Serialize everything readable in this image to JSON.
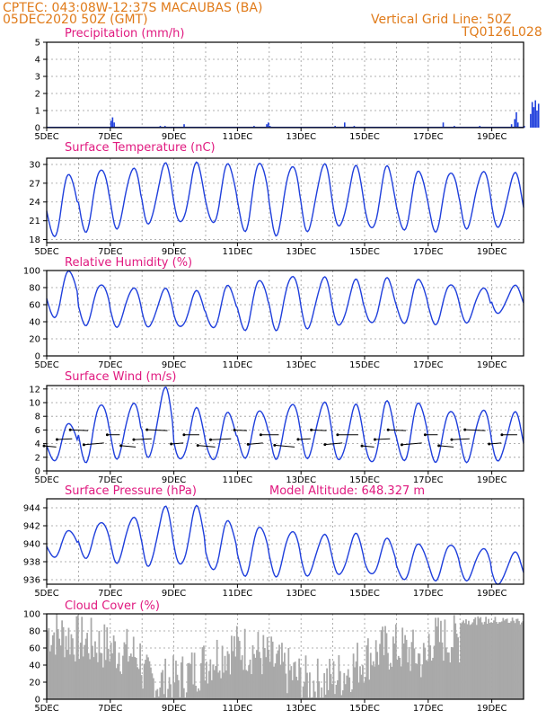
{
  "header": {
    "line1": "CPTEC:   043:08W-12:37S   MACAUBAS (BA)",
    "line2": "05DEC2020 50Z (GMT)",
    "right1": "Vertical Grid Line: 50Z",
    "right2": "TQ0126L028"
  },
  "x_ticks": [
    "5DEC",
    "7DEC",
    "9DEC",
    "11DEC",
    "13DEC",
    "15DEC",
    "17DEC",
    "19DEC"
  ],
  "colors": {
    "line": "#1f3fdc",
    "bar": "#1f3fdc",
    "cloud": "#a9a9a9",
    "header": "#e07b1a",
    "title": "#e0197f"
  },
  "chart_data": [
    {
      "type": "bar",
      "title": "Precipitation (mm/h)",
      "ylim": [
        0,
        5
      ],
      "yticks": [
        0,
        1,
        2,
        3,
        4,
        5
      ],
      "x_days": [
        0,
        15
      ],
      "bars": [
        [
          7.0,
          0.4
        ],
        [
          7.05,
          0.6
        ],
        [
          7.1,
          0.3
        ],
        [
          8.55,
          0.1
        ],
        [
          8.7,
          0.1
        ],
        [
          9.3,
          0.2
        ],
        [
          9.7,
          0.05
        ],
        [
          10.6,
          0.05
        ],
        [
          11.5,
          0.1
        ],
        [
          11.9,
          0.2
        ],
        [
          11.95,
          0.3
        ],
        [
          12.0,
          0.1
        ],
        [
          12.7,
          0.05
        ],
        [
          14.05,
          0.1
        ],
        [
          14.35,
          0.3
        ],
        [
          14.65,
          0.1
        ],
        [
          17.1,
          0.05
        ],
        [
          17.45,
          0.3
        ],
        [
          17.8,
          0.1
        ],
        [
          18.6,
          0.1
        ],
        [
          19.6,
          0.2
        ],
        [
          19.7,
          0.5
        ],
        [
          19.75,
          0.9
        ],
        [
          19.8,
          0.3
        ],
        [
          20.0,
          0.1
        ],
        [
          20.2,
          0.8
        ],
        [
          20.25,
          1.5
        ],
        [
          20.3,
          1.2
        ],
        [
          20.35,
          1.6
        ],
        [
          20.4,
          1.0
        ],
        [
          20.45,
          1.4
        ]
      ]
    },
    {
      "type": "line",
      "title": "Surface Temperature (nC)",
      "ylim": [
        17.5,
        31
      ],
      "yticks": [
        18,
        21,
        24,
        27,
        30
      ],
      "min": [
        18.5,
        19.5,
        20,
        20.5,
        20.5,
        20.5,
        19.5,
        19,
        19.5,
        20,
        19.5,
        19.5,
        19.5,
        20,
        20
      ],
      "max": [
        28.5,
        29.5,
        29.5,
        30,
        30,
        30,
        30.5,
        30,
        30,
        29.5,
        29.5,
        29,
        29,
        29,
        28.5
      ]
    },
    {
      "type": "line",
      "title": "Relative Humidity (%)",
      "ylim": [
        0,
        100
      ],
      "yticks": [
        0,
        20,
        40,
        60,
        80,
        100
      ],
      "min": [
        45,
        37,
        35,
        34,
        33,
        32,
        31,
        32,
        33,
        35,
        37,
        38,
        38,
        40,
        50
      ],
      "max": [
        100,
        85,
        80,
        78,
        75,
        82,
        90,
        95,
        92,
        88,
        90,
        90,
        85,
        80,
        82
      ]
    },
    {
      "type": "line",
      "title": "Surface Wind (m/s)",
      "ylim": [
        0,
        12.5
      ],
      "yticks": [
        0,
        2,
        4,
        6,
        8,
        10,
        12
      ],
      "min": [
        1.5,
        1.5,
        2,
        2,
        1.5,
        1.5,
        2,
        2,
        2,
        1.5,
        1,
        1.5,
        1.5,
        1.5,
        1.5
      ],
      "max": [
        7,
        10,
        10,
        12,
        9,
        8.5,
        9,
        10,
        10,
        9.5,
        10,
        10,
        9,
        9,
        8.5
      ]
    },
    {
      "type": "line",
      "title": "Surface Pressure (hPa)",
      "annotation": "Model Altitude: 648.327 m",
      "ylim": [
        935.5,
        945
      ],
      "yticks": [
        936,
        938,
        940,
        942,
        944
      ],
      "min": [
        938.5,
        938.5,
        938,
        937.5,
        937.5,
        937,
        936.5,
        936.5,
        936.5,
        936.5,
        936.5,
        936,
        936,
        936,
        935.5
      ],
      "max": [
        941.5,
        942.5,
        943,
        944,
        944,
        942.5,
        942,
        941.5,
        941,
        941,
        940.5,
        940,
        940,
        939.5,
        939
      ]
    },
    {
      "type": "area",
      "title": "Cloud Cover (%)",
      "ylim": [
        0,
        100
      ],
      "yticks": [
        0,
        20,
        40,
        60,
        80,
        100
      ]
    }
  ]
}
